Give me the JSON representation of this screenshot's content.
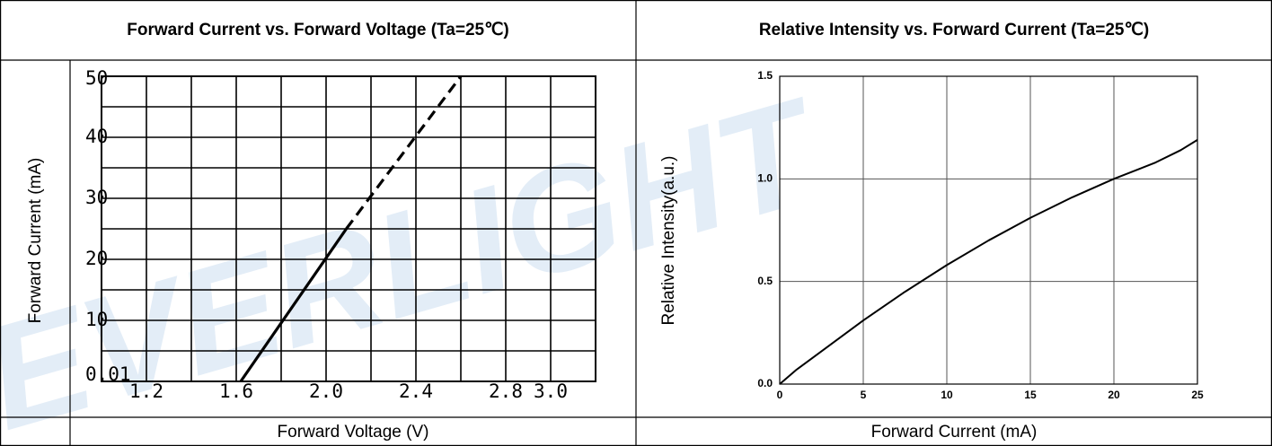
{
  "watermark": "EVERLIGHT",
  "chart_data": [
    {
      "type": "line",
      "title": "Forward Current vs. Forward Voltage (Ta=25℃)",
      "x_label": "Forward Voltage (V)",
      "y_label": "Forward Current (mA)",
      "xlim": [
        1.0,
        3.2
      ],
      "xticks": [
        1.2,
        1.6,
        {
          "value": 2,
          "label": "2.0"
        },
        2.4,
        2.8,
        {
          "value": 3,
          "label": "3.0"
        }
      ],
      "xgrid": [
        1.0,
        1.2,
        1.4,
        1.6,
        1.8,
        2.0,
        2.2,
        2.4,
        2.6,
        2.8,
        3.0,
        3.2
      ],
      "ylim": [
        0,
        50
      ],
      "yticks": [
        0.01,
        10,
        20,
        30,
        40,
        50
      ],
      "ygrid": [
        0,
        5,
        10,
        15,
        20,
        25,
        30,
        35,
        40,
        45,
        50
      ],
      "grid": true,
      "series": [
        {
          "color": "#000000",
          "dashed": false,
          "x": [
            1.62,
            2.09
          ],
          "values": [
            0,
            25
          ]
        },
        {
          "color": "#000000",
          "dashed": true,
          "x": [
            2.09,
            2.6
          ],
          "values": [
            25,
            50
          ]
        }
      ]
    },
    {
      "type": "line",
      "title": "Relative Intensity vs. Forward Current (Ta=25℃)",
      "x_label": "Forward Current (mA)",
      "y_label": "Relative Intensity(a.u.)",
      "xlim": [
        0,
        25
      ],
      "xticks": [
        0,
        5,
        10,
        15,
        20,
        25
      ],
      "ylim": [
        0,
        1.5
      ],
      "yticks": [
        {
          "value": 0,
          "label": "0.0"
        },
        0.5,
        {
          "value": 1,
          "label": "1.0"
        },
        1.5
      ],
      "grid": true,
      "series": [
        {
          "color": "#000000",
          "dashed": false,
          "x": [
            0,
            1,
            2,
            3,
            4,
            5,
            7.5,
            10,
            12.5,
            15,
            17.5,
            20,
            22.5,
            24,
            25
          ],
          "values": [
            0,
            0.07,
            0.13,
            0.19,
            0.25,
            0.31,
            0.45,
            0.58,
            0.7,
            0.81,
            0.91,
            1.0,
            1.08,
            1.14,
            1.19
          ]
        }
      ]
    }
  ]
}
